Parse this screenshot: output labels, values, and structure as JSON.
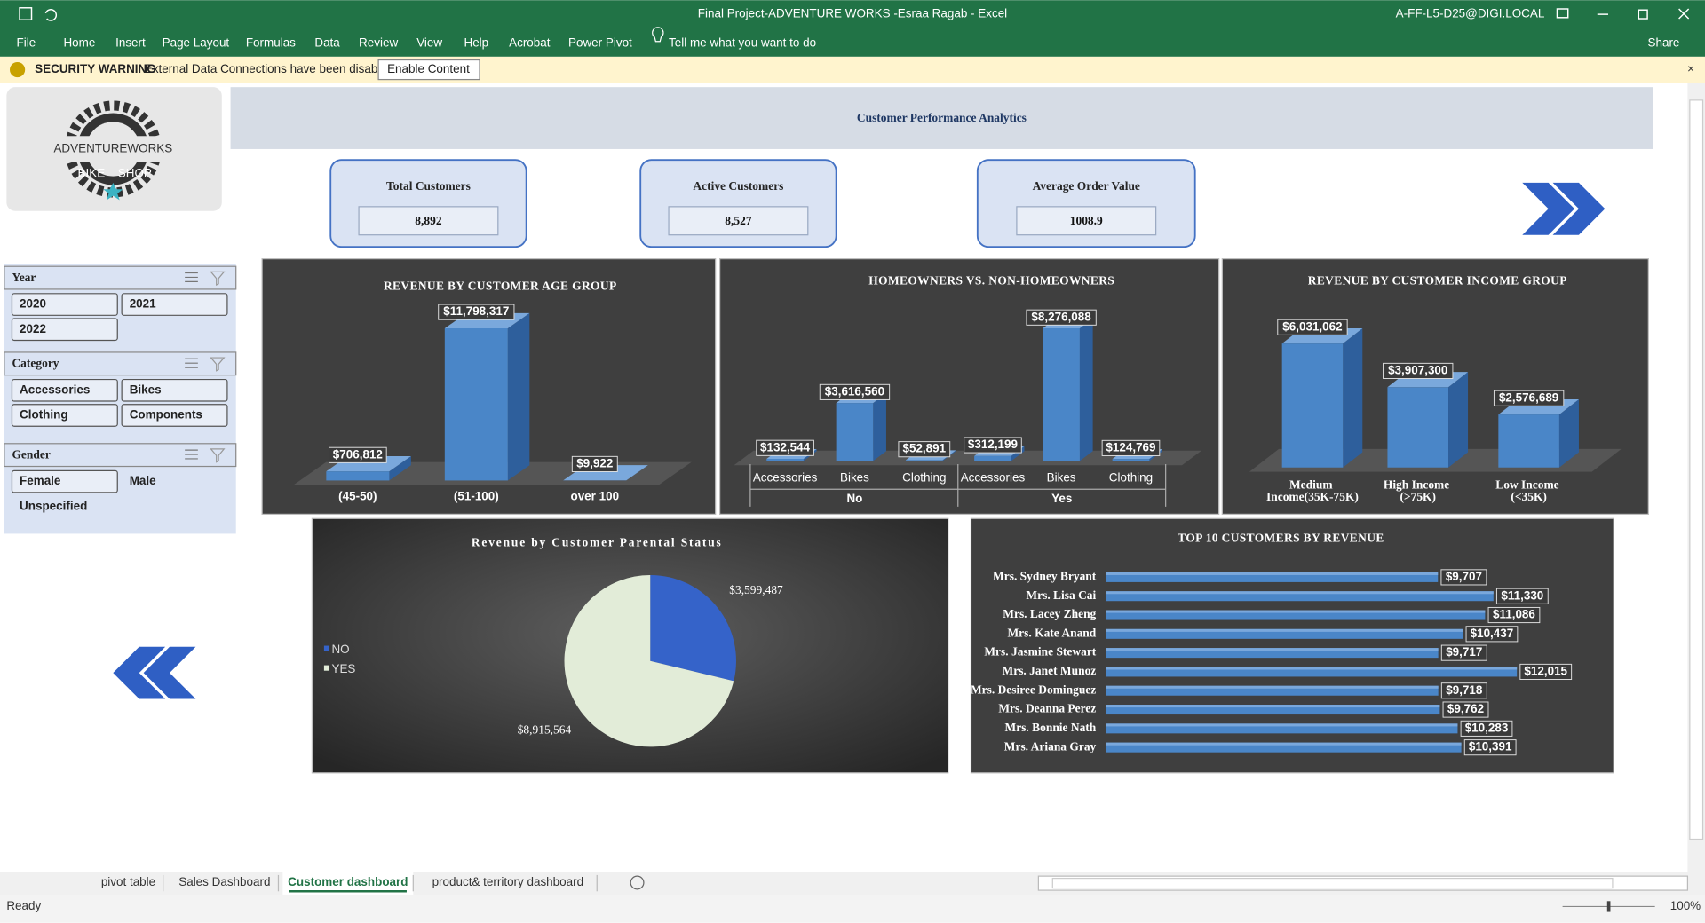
{
  "window": {
    "title": "Final Project-ADVENTURE WORKS -Esraa Ragab  -  Excel",
    "account": "A-FF-L5-D25@DIGI.LOCAL",
    "share": "Share"
  },
  "ribbon": {
    "tabs": [
      "File",
      "Home",
      "Insert",
      "Page Layout",
      "Formulas",
      "Data",
      "Review",
      "View",
      "Help",
      "Acrobat",
      "Power Pivot"
    ],
    "tell_me": "Tell me what you want to do"
  },
  "security_bar": {
    "label": "SECURITY WARNING",
    "message": "External Data Connections have been disabled",
    "button": "Enable Content"
  },
  "logo": {
    "brand": "ADVENTUREWORKS",
    "tag_left": "BIKE",
    "tag_right": "SHOP"
  },
  "dashboard": {
    "title": "Customer Performance Analytics",
    "kpis": [
      {
        "label": "Total Customers",
        "value": "8,892"
      },
      {
        "label": "Active Customers",
        "value": "8,527"
      },
      {
        "label": "Average Order Value",
        "value": "1008.9"
      }
    ]
  },
  "slicers": [
    {
      "title": "Year",
      "items": [
        {
          "label": "2020",
          "selected": true
        },
        {
          "label": "2021",
          "selected": true
        },
        {
          "label": "2022",
          "selected": true
        }
      ]
    },
    {
      "title": "Category",
      "items": [
        {
          "label": "Accessories",
          "selected": true
        },
        {
          "label": "Bikes",
          "selected": true
        },
        {
          "label": "Clothing",
          "selected": true
        },
        {
          "label": "Components",
          "selected": true
        }
      ]
    },
    {
      "title": "Gender",
      "items": [
        {
          "label": "Female",
          "selected": true
        },
        {
          "label": "Male",
          "selected": false
        },
        {
          "label": "Unspecified",
          "selected": false
        }
      ]
    }
  ],
  "chart_data": [
    {
      "type": "bar",
      "title": "REVENUE BY CUSTOMER AGE GROUP",
      "categories": [
        "(45-50)",
        "(51-100)",
        "over 100"
      ],
      "values": [
        706812,
        11798317,
        9922
      ],
      "value_labels": [
        "$706,812",
        "$11,798,317",
        "$9,922"
      ],
      "color": "#4a86c8"
    },
    {
      "type": "grouped_bar",
      "title": "HOMEOWNERS VS. NON-HOMEOWNERS",
      "color": "#4a86c8",
      "groups": [
        {
          "name": "No",
          "categories": [
            "Accessories",
            "Bikes",
            "Clothing"
          ],
          "values": [
            132544,
            3616560,
            52891
          ],
          "value_labels": [
            "$132,544",
            "$3,616,560",
            "$52,891"
          ]
        },
        {
          "name": "Yes",
          "categories": [
            "Accessories",
            "Bikes",
            "Clothing"
          ],
          "values": [
            312199,
            8276088,
            124769
          ],
          "value_labels": [
            "$312,199",
            "$8,276,088",
            "$124,769"
          ]
        }
      ]
    },
    {
      "type": "bar",
      "title": "REVENUE BY CUSTOMER INCOME GROUP",
      "categories": [
        "Medium Income(35K-75K)",
        "High Income (>75K)",
        "Low Income (<35K)"
      ],
      "values": [
        6031062,
        3907300,
        2576689
      ],
      "value_labels": [
        "$6,031,062",
        "$3,907,300",
        "$2,576,689"
      ],
      "color": "#4a86c8"
    },
    {
      "type": "pie",
      "title": "Revenue by Customer Parental Status",
      "categories": [
        "NO",
        "YES"
      ],
      "values": [
        3599487,
        8915564
      ],
      "value_labels": [
        "$3,599,487",
        "$8,915,564"
      ],
      "colors": [
        "#3563c9",
        "#e2ecd8"
      ]
    },
    {
      "type": "hbar",
      "title": "TOP 10 CUSTOMERS BY REVENUE",
      "categories": [
        "Mrs. Sydney Bryant",
        "Mrs. Lisa Cai",
        "Mrs. Lacey Zheng",
        "Mrs. Kate Anand",
        "Mrs. Jasmine Stewart",
        "Mrs. Janet Munoz",
        "Mrs. Desiree Dominguez",
        "Mrs. Deanna Perez",
        "Mrs. Bonnie Nath",
        "Mrs. Ariana Gray"
      ],
      "values": [
        9707,
        11330,
        11086,
        10437,
        9717,
        12015,
        9718,
        9762,
        10283,
        10391
      ],
      "value_labels": [
        "$9,707",
        "$11,330",
        "$11,086",
        "$10,437",
        "$9,717",
        "$12,015",
        "$9,718",
        "$9,762",
        "$10,283",
        "$10,391"
      ],
      "color": "#4a86c8"
    }
  ],
  "sheet_tabs": {
    "tabs": [
      "pivot table",
      "Sales Dashboard",
      "Customer dashboard",
      "product& territory dashboard"
    ],
    "active": 2
  },
  "status": {
    "text": "Ready",
    "zoom": "100%"
  }
}
